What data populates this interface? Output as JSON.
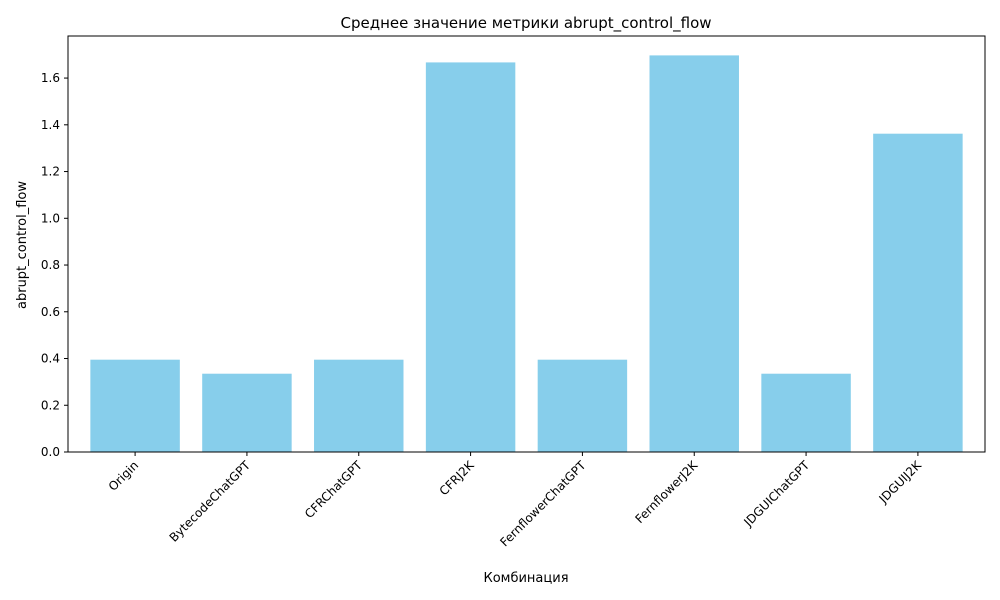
{
  "chart_data": {
    "type": "bar",
    "title": "Среднее значение метрики abrupt_control_flow",
    "xlabel": "Комбинация",
    "ylabel": "abrupt_control_flow",
    "categories": [
      "Origin",
      "BytecodeChatGPT",
      "CFRChatGPT",
      "CFRJ2K",
      "FernflowerChatGPT",
      "FernflowerJ2K",
      "JDGUIChatGPT",
      "JDGUIJ2K"
    ],
    "values": [
      0.395,
      0.335,
      0.395,
      1.667,
      0.395,
      1.697,
      0.335,
      1.362
    ],
    "yticks": [
      "0.0",
      "0.2",
      "0.4",
      "0.6",
      "0.8",
      "1.0",
      "1.2",
      "1.4",
      "1.6"
    ],
    "ylim": [
      0,
      1.78
    ],
    "grid": false,
    "bar_color": "#87CEEB"
  }
}
